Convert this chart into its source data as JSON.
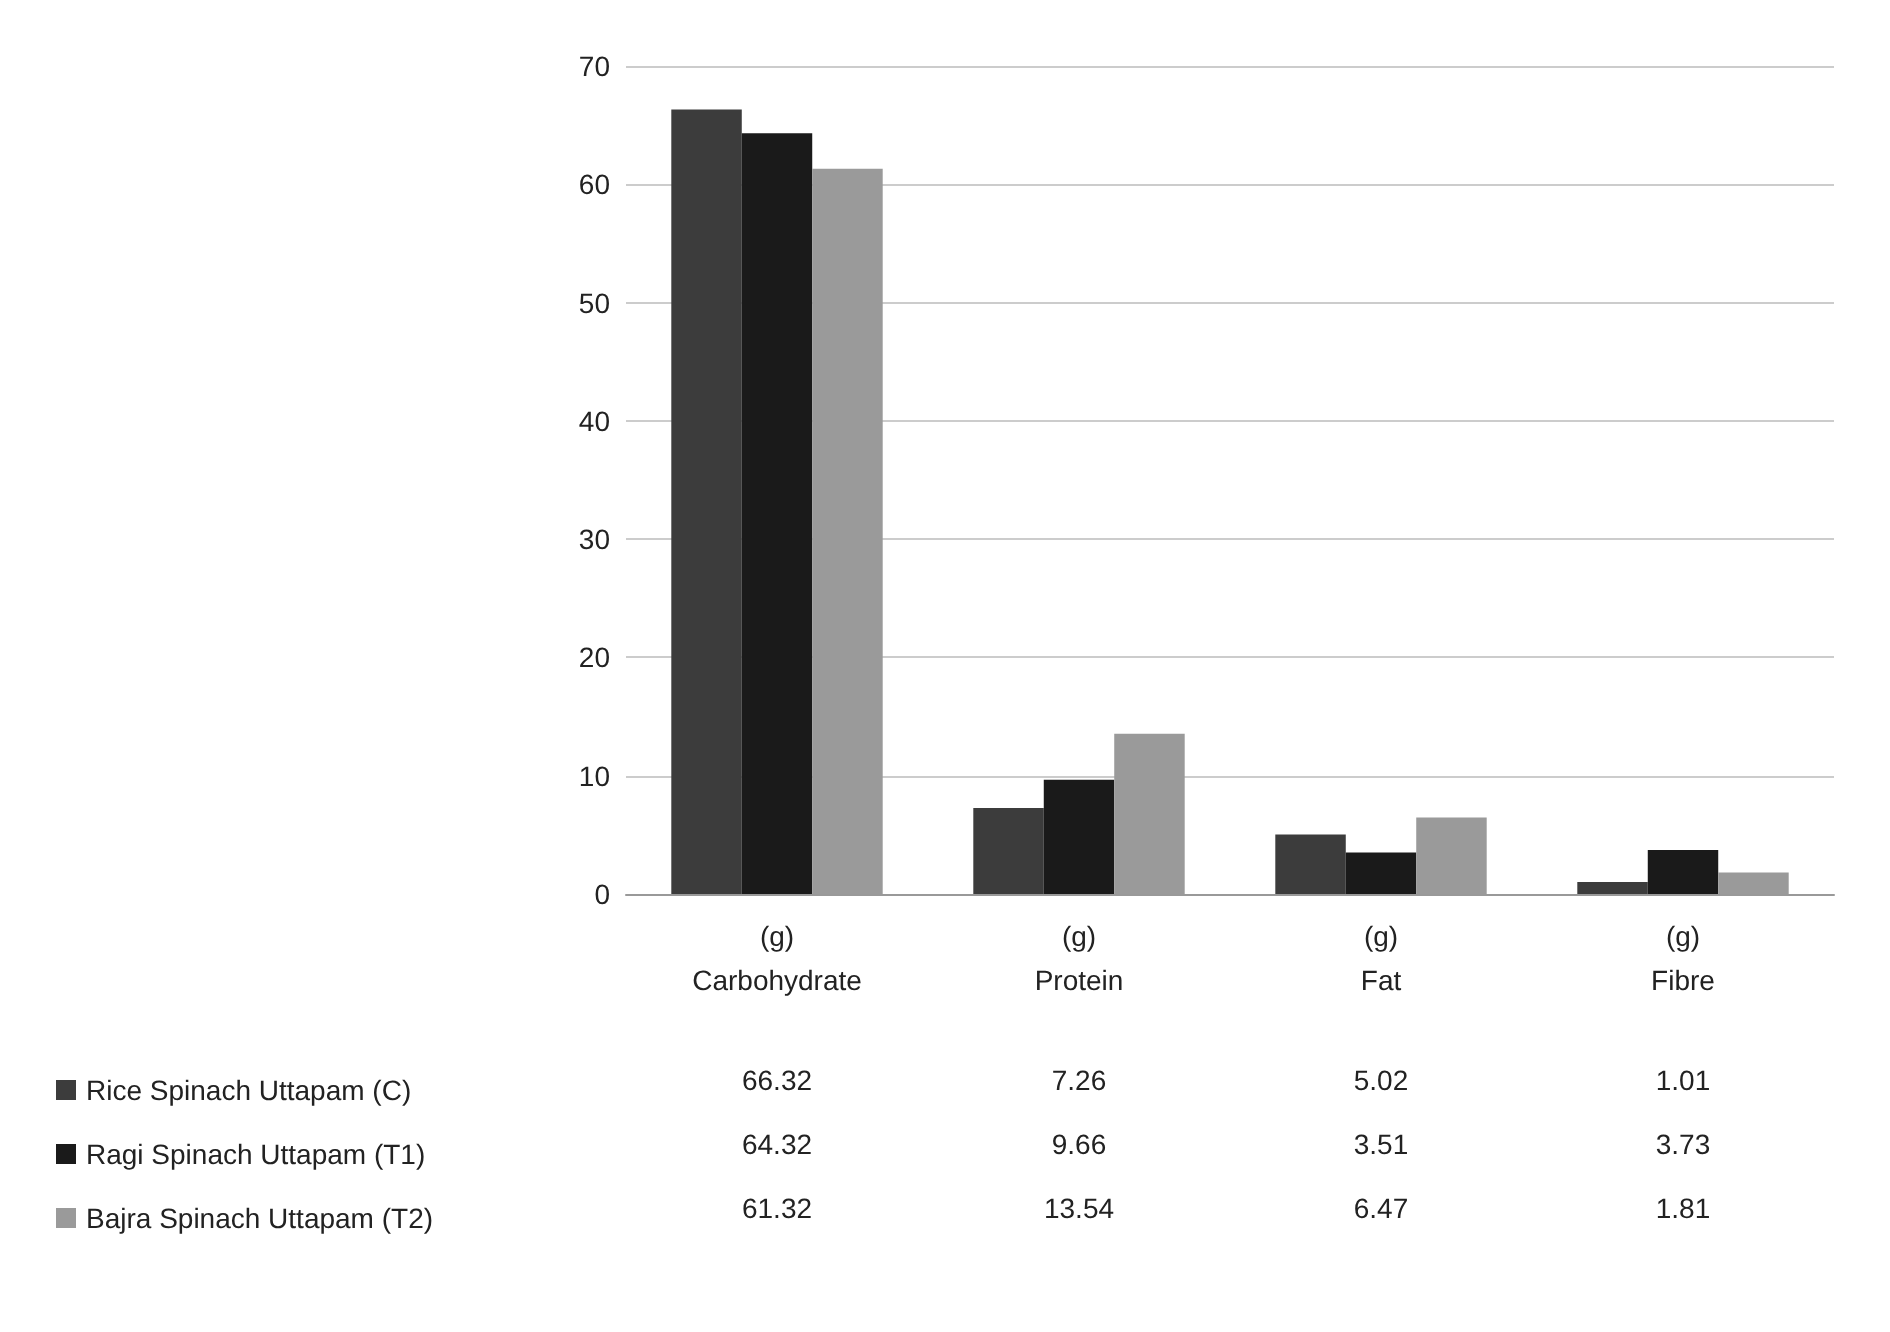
{
  "chart_data": {
    "type": "bar",
    "categories": [
      "(g)\nCarbohydrate",
      "(g)\nProtein",
      "(g)\nFat",
      "(g)\nFibre"
    ],
    "series": [
      {
        "name": "Rice Spinach Uttapam (C)",
        "color": "#3c3c3c",
        "values": [
          66.32,
          7.26,
          5.02,
          1.01
        ]
      },
      {
        "name": "Ragi Spinach Uttapam (T1)",
        "color": "#1a1a1a",
        "values": [
          64.32,
          9.66,
          3.51,
          3.73
        ]
      },
      {
        "name": "Bajra Spinach Uttapam (T2)",
        "color": "#9a9a9a",
        "values": [
          61.32,
          13.54,
          6.47,
          1.81
        ]
      }
    ],
    "ylim": [
      0,
      70
    ],
    "yticks": [
      0,
      10,
      20,
      30,
      40,
      50,
      60,
      70
    ],
    "grid": "y",
    "legend": "bottom left",
    "data_labels": true
  }
}
